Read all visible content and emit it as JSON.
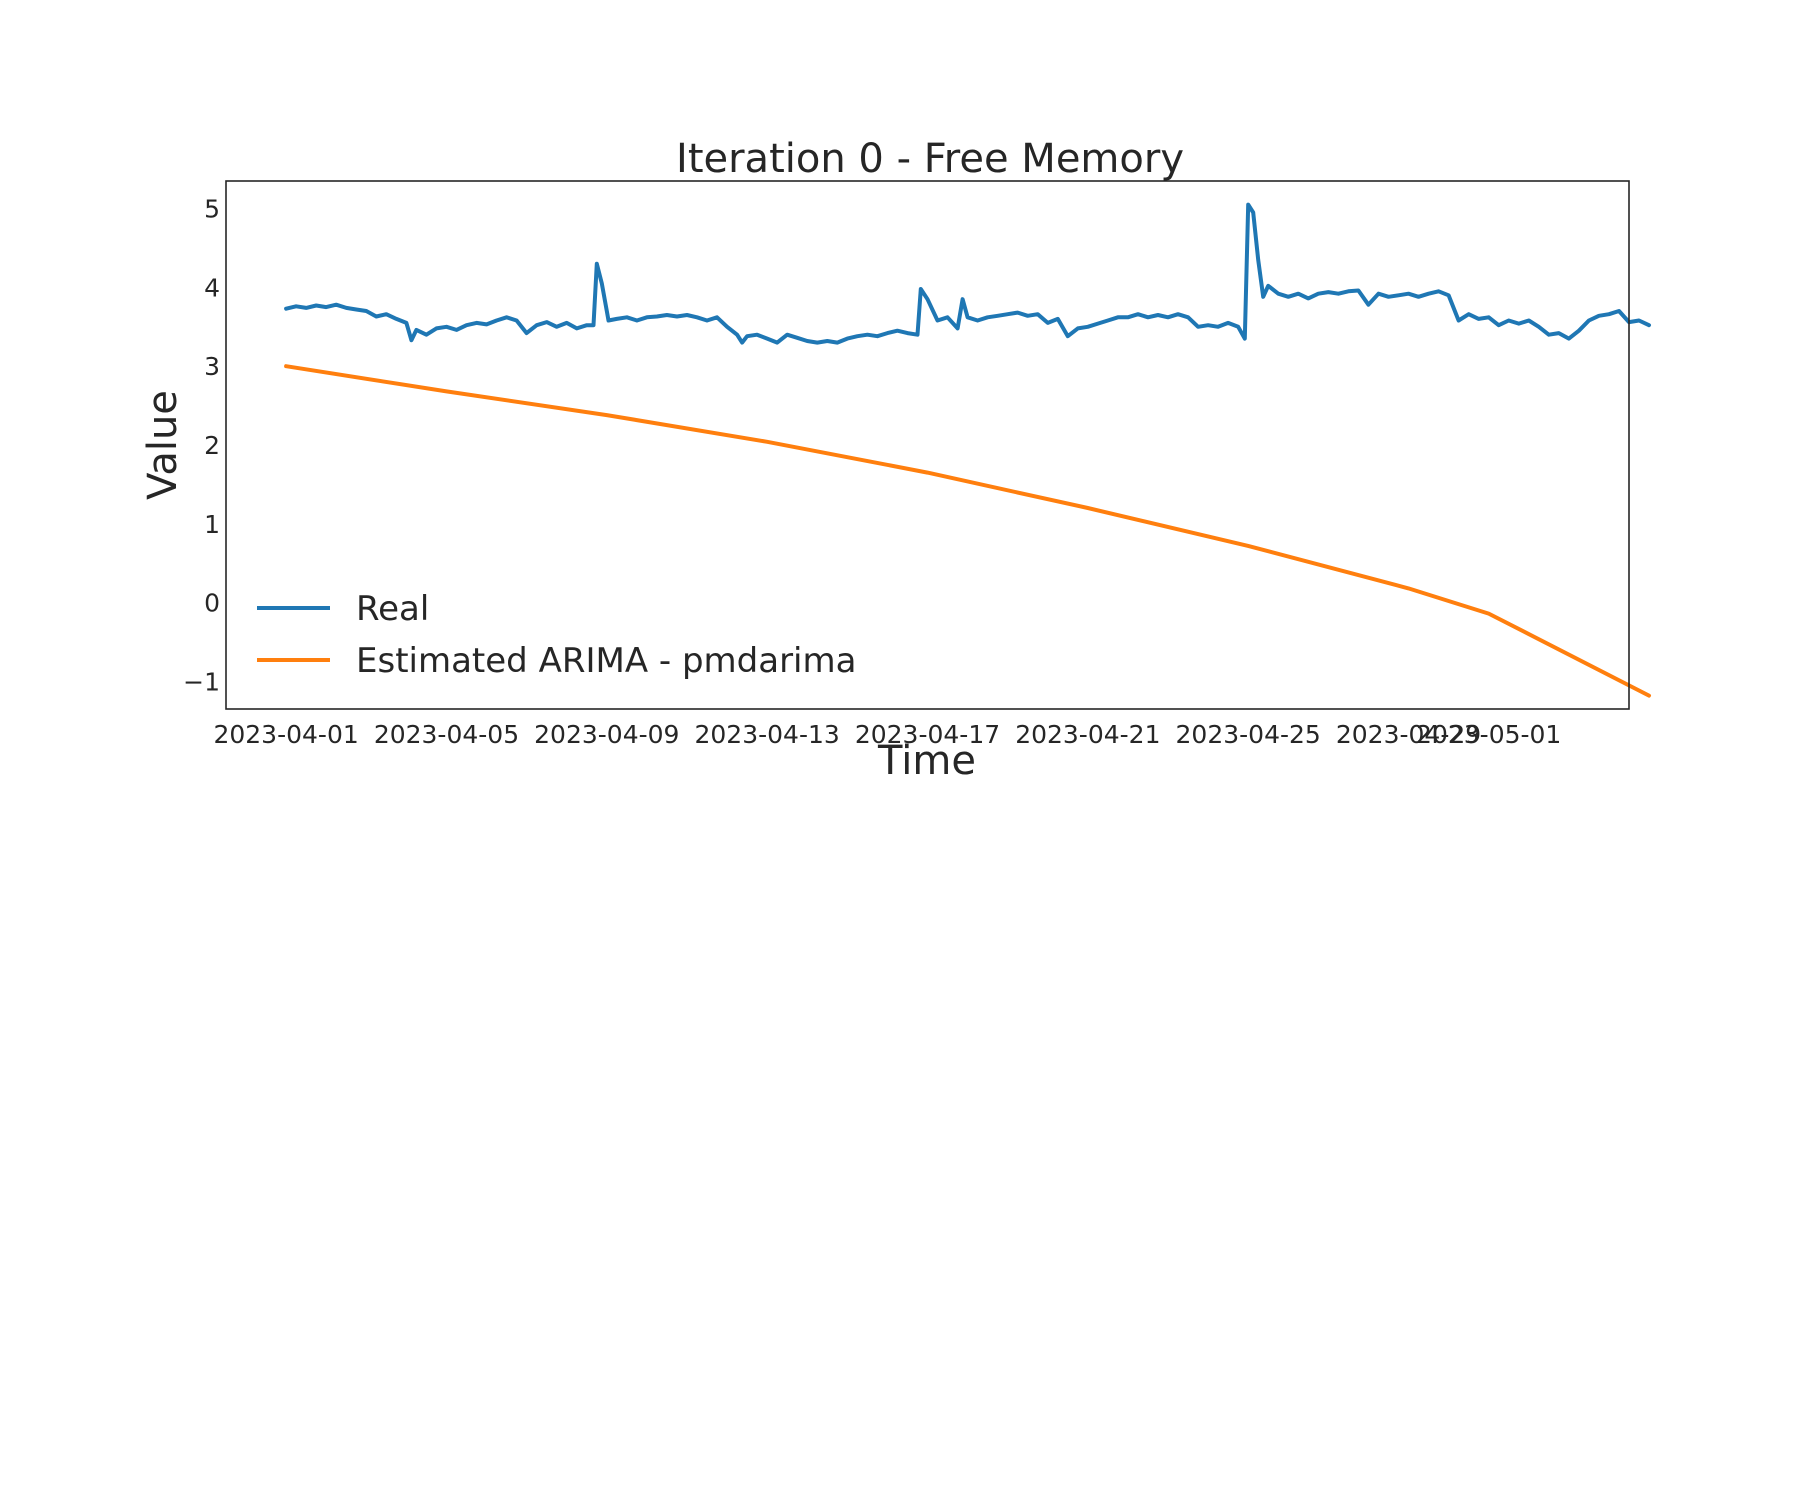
{
  "chart_data": {
    "type": "line",
    "title": "Iteration 0 - Free Memory",
    "xlabel": "Time",
    "ylabel": "Value",
    "x_type": "date",
    "xlim": [
      "2023-03-30T12:00",
      "2023-05-04T12:00"
    ],
    "ylim": [
      -1.35,
      5.35
    ],
    "y_ticks": [
      -1,
      0,
      1,
      2,
      3,
      4,
      5
    ],
    "y_tick_labels": [
      "−1",
      "0",
      "1",
      "2",
      "3",
      "4",
      "5"
    ],
    "x_ticks": [
      "2023-04-01",
      "2023-04-05",
      "2023-04-09",
      "2023-04-13",
      "2023-04-17",
      "2023-04-21",
      "2023-04-25",
      "2023-04-29",
      "2023-05-01"
    ],
    "x_tick_labels": [
      "2023-04-01",
      "2023-04-05",
      "2023-04-09",
      "2023-04-13",
      "2023-04-17",
      "2023-04-21",
      "2023-04-25",
      "2023-04-29",
      "2023-05-01"
    ],
    "grid": false,
    "legend_position": "lower-left",
    "series": [
      {
        "name": "Real",
        "color": "#1f77b4",
        "points": [
          [
            "2023-04-01T00:00",
            3.73
          ],
          [
            "2023-04-01T06:00",
            3.76
          ],
          [
            "2023-04-01T12:00",
            3.74
          ],
          [
            "2023-04-01T18:00",
            3.77
          ],
          [
            "2023-04-02T00:00",
            3.75
          ],
          [
            "2023-04-02T06:00",
            3.78
          ],
          [
            "2023-04-02T12:00",
            3.74
          ],
          [
            "2023-04-02T18:00",
            3.72
          ],
          [
            "2023-04-03T00:00",
            3.7
          ],
          [
            "2023-04-03T06:00",
            3.63
          ],
          [
            "2023-04-03T12:00",
            3.66
          ],
          [
            "2023-04-03T18:00",
            3.6
          ],
          [
            "2023-04-04T00:00",
            3.55
          ],
          [
            "2023-04-04T03:00",
            3.33
          ],
          [
            "2023-04-04T06:00",
            3.46
          ],
          [
            "2023-04-04T12:00",
            3.4
          ],
          [
            "2023-04-04T18:00",
            3.48
          ],
          [
            "2023-04-05T00:00",
            3.5
          ],
          [
            "2023-04-05T06:00",
            3.46
          ],
          [
            "2023-04-05T12:00",
            3.52
          ],
          [
            "2023-04-05T18:00",
            3.55
          ],
          [
            "2023-04-06T00:00",
            3.53
          ],
          [
            "2023-04-06T06:00",
            3.58
          ],
          [
            "2023-04-06T12:00",
            3.62
          ],
          [
            "2023-04-06T18:00",
            3.58
          ],
          [
            "2023-04-07T00:00",
            3.42
          ],
          [
            "2023-04-07T06:00",
            3.52
          ],
          [
            "2023-04-07T12:00",
            3.56
          ],
          [
            "2023-04-07T18:00",
            3.5
          ],
          [
            "2023-04-08T00:00",
            3.55
          ],
          [
            "2023-04-08T06:00",
            3.48
          ],
          [
            "2023-04-08T12:00",
            3.52
          ],
          [
            "2023-04-08T16:00",
            3.52
          ],
          [
            "2023-04-08T18:00",
            4.3
          ],
          [
            "2023-04-08T21:00",
            4.05
          ],
          [
            "2023-04-09T00:00",
            3.7
          ],
          [
            "2023-04-09T01:00",
            3.58
          ],
          [
            "2023-04-09T06:00",
            3.6
          ],
          [
            "2023-04-09T12:00",
            3.62
          ],
          [
            "2023-04-09T18:00",
            3.58
          ],
          [
            "2023-04-10T00:00",
            3.62
          ],
          [
            "2023-04-10T06:00",
            3.63
          ],
          [
            "2023-04-10T12:00",
            3.65
          ],
          [
            "2023-04-10T18:00",
            3.63
          ],
          [
            "2023-04-11T00:00",
            3.65
          ],
          [
            "2023-04-11T06:00",
            3.62
          ],
          [
            "2023-04-11T12:00",
            3.58
          ],
          [
            "2023-04-11T18:00",
            3.62
          ],
          [
            "2023-04-12T00:00",
            3.5
          ],
          [
            "2023-04-12T06:00",
            3.4
          ],
          [
            "2023-04-12T09:00",
            3.3
          ],
          [
            "2023-04-12T12:00",
            3.38
          ],
          [
            "2023-04-12T18:00",
            3.4
          ],
          [
            "2023-04-13T00:00",
            3.35
          ],
          [
            "2023-04-13T06:00",
            3.3
          ],
          [
            "2023-04-13T12:00",
            3.4
          ],
          [
            "2023-04-13T18:00",
            3.36
          ],
          [
            "2023-04-14T00:00",
            3.32
          ],
          [
            "2023-04-14T06:00",
            3.3
          ],
          [
            "2023-04-14T12:00",
            3.32
          ],
          [
            "2023-04-14T18:00",
            3.3
          ],
          [
            "2023-04-15T00:00",
            3.35
          ],
          [
            "2023-04-15T06:00",
            3.38
          ],
          [
            "2023-04-15T12:00",
            3.4
          ],
          [
            "2023-04-15T18:00",
            3.38
          ],
          [
            "2023-04-16T00:00",
            3.42
          ],
          [
            "2023-04-16T06:00",
            3.45
          ],
          [
            "2023-04-16T12:00",
            3.42
          ],
          [
            "2023-04-16T18:00",
            3.4
          ],
          [
            "2023-04-16T20:00",
            3.98
          ],
          [
            "2023-04-17T00:00",
            3.85
          ],
          [
            "2023-04-17T06:00",
            3.58
          ],
          [
            "2023-04-17T12:00",
            3.62
          ],
          [
            "2023-04-17T18:00",
            3.48
          ],
          [
            "2023-04-17T21:00",
            3.85
          ],
          [
            "2023-04-18T00:00",
            3.62
          ],
          [
            "2023-04-18T06:00",
            3.58
          ],
          [
            "2023-04-18T12:00",
            3.62
          ],
          [
            "2023-04-18T18:00",
            3.64
          ],
          [
            "2023-04-19T00:00",
            3.66
          ],
          [
            "2023-04-19T06:00",
            3.68
          ],
          [
            "2023-04-19T12:00",
            3.64
          ],
          [
            "2023-04-19T18:00",
            3.66
          ],
          [
            "2023-04-20T00:00",
            3.55
          ],
          [
            "2023-04-20T06:00",
            3.6
          ],
          [
            "2023-04-20T12:00",
            3.38
          ],
          [
            "2023-04-20T18:00",
            3.48
          ],
          [
            "2023-04-21T00:00",
            3.5
          ],
          [
            "2023-04-21T06:00",
            3.54
          ],
          [
            "2023-04-21T12:00",
            3.58
          ],
          [
            "2023-04-21T18:00",
            3.62
          ],
          [
            "2023-04-22T00:00",
            3.62
          ],
          [
            "2023-04-22T06:00",
            3.66
          ],
          [
            "2023-04-22T12:00",
            3.62
          ],
          [
            "2023-04-22T18:00",
            3.65
          ],
          [
            "2023-04-23T00:00",
            3.62
          ],
          [
            "2023-04-23T06:00",
            3.66
          ],
          [
            "2023-04-23T12:00",
            3.62
          ],
          [
            "2023-04-23T18:00",
            3.5
          ],
          [
            "2023-04-24T00:00",
            3.52
          ],
          [
            "2023-04-24T06:00",
            3.5
          ],
          [
            "2023-04-24T12:00",
            3.55
          ],
          [
            "2023-04-24T18:00",
            3.5
          ],
          [
            "2023-04-24T22:00",
            3.35
          ],
          [
            "2023-04-25T00:00",
            5.05
          ],
          [
            "2023-04-25T03:00",
            4.95
          ],
          [
            "2023-04-25T06:00",
            4.35
          ],
          [
            "2023-04-25T09:00",
            3.88
          ],
          [
            "2023-04-25T12:00",
            4.02
          ],
          [
            "2023-04-25T18:00",
            3.92
          ],
          [
            "2023-04-26T00:00",
            3.88
          ],
          [
            "2023-04-26T06:00",
            3.92
          ],
          [
            "2023-04-26T12:00",
            3.86
          ],
          [
            "2023-04-26T18:00",
            3.92
          ],
          [
            "2023-04-27T00:00",
            3.94
          ],
          [
            "2023-04-27T06:00",
            3.92
          ],
          [
            "2023-04-27T12:00",
            3.95
          ],
          [
            "2023-04-27T18:00",
            3.96
          ],
          [
            "2023-04-28T00:00",
            3.78
          ],
          [
            "2023-04-28T06:00",
            3.92
          ],
          [
            "2023-04-28T12:00",
            3.88
          ],
          [
            "2023-04-28T18:00",
            3.9
          ],
          [
            "2023-04-29T00:00",
            3.92
          ],
          [
            "2023-04-29T06:00",
            3.88
          ],
          [
            "2023-04-29T12:00",
            3.92
          ],
          [
            "2023-04-29T18:00",
            3.95
          ],
          [
            "2023-04-30T00:00",
            3.9
          ],
          [
            "2023-04-30T06:00",
            3.58
          ],
          [
            "2023-04-30T12:00",
            3.66
          ],
          [
            "2023-04-30T18:00",
            3.6
          ],
          [
            "2023-05-01T00:00",
            3.62
          ],
          [
            "2023-05-01T06:00",
            3.52
          ],
          [
            "2023-05-01T12:00",
            3.58
          ],
          [
            "2023-05-01T18:00",
            3.54
          ],
          [
            "2023-05-02T00:00",
            3.58
          ],
          [
            "2023-05-02T06:00",
            3.5
          ],
          [
            "2023-05-02T12:00",
            3.4
          ],
          [
            "2023-05-02T18:00",
            3.42
          ],
          [
            "2023-05-03T00:00",
            3.35
          ],
          [
            "2023-05-03T06:00",
            3.45
          ],
          [
            "2023-05-03T12:00",
            3.58
          ],
          [
            "2023-05-03T18:00",
            3.64
          ],
          [
            "2023-05-04T00:00",
            3.66
          ],
          [
            "2023-05-04T06:00",
            3.7
          ],
          [
            "2023-05-04T12:00",
            3.56
          ],
          [
            "2023-05-04T18:00",
            3.58
          ],
          [
            "2023-05-05T00:00",
            3.52
          ]
        ]
      },
      {
        "name": "Estimated ARIMA - pmdarima",
        "color": "#ff7f0e",
        "points": [
          [
            "2023-04-01T00:00",
            3.0
          ],
          [
            "2023-04-05T00:00",
            2.68
          ],
          [
            "2023-04-09T00:00",
            2.38
          ],
          [
            "2023-04-13T00:00",
            2.04
          ],
          [
            "2023-04-17T00:00",
            1.65
          ],
          [
            "2023-04-21T00:00",
            1.2
          ],
          [
            "2023-04-25T00:00",
            0.72
          ],
          [
            "2023-04-29T00:00",
            0.18
          ],
          [
            "2023-05-01T00:00",
            -0.14
          ],
          [
            "2023-05-05T00:00",
            -1.18
          ]
        ]
      }
    ]
  }
}
